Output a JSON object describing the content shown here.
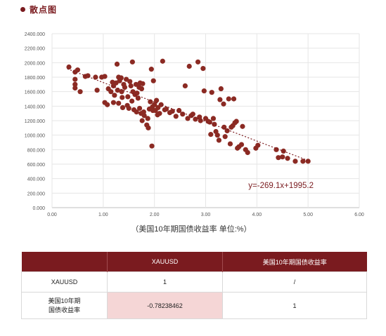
{
  "header": {
    "title": "散点图"
  },
  "chart_data": {
    "type": "scatter",
    "title": "",
    "xlabel": "（美国10年期国债收益率 单位:%）",
    "ylabel": "",
    "xlim": [
      0,
      6
    ],
    "ylim": [
      0,
      2400
    ],
    "x_ticks": [
      "0.00",
      "1.00",
      "2.00",
      "3.00",
      "4.00",
      "5.00",
      "6.00"
    ],
    "y_ticks": [
      "0.000",
      "200.000",
      "400.000",
      "600.000",
      "800.000",
      "1000.000",
      "1200.000",
      "1400.000",
      "1600.000",
      "1800.000",
      "2000.000",
      "2200.000",
      "2400.000"
    ],
    "grid": true,
    "colors": {
      "points": "#8b2a23",
      "trendline": "#7a1b1f",
      "grid": "#e6e6e6"
    },
    "trendline": {
      "slope": -269.1,
      "intercept": 1995.2,
      "x_range": [
        0.3,
        5.0
      ],
      "label": "y=-269.1x+1995.2"
    },
    "series": [
      {
        "points": [
          [
            0.33,
            1940
          ],
          [
            0.45,
            1870
          ],
          [
            0.45,
            1770
          ],
          [
            0.45,
            1700
          ],
          [
            0.45,
            1650
          ],
          [
            0.5,
            1900
          ],
          [
            0.55,
            1600
          ],
          [
            0.65,
            1810
          ],
          [
            0.7,
            1820
          ],
          [
            0.85,
            1800
          ],
          [
            0.88,
            1620
          ],
          [
            0.97,
            1800
          ],
          [
            1.03,
            1810
          ],
          [
            1.03,
            1450
          ],
          [
            1.08,
            1420
          ],
          [
            1.1,
            1640
          ],
          [
            1.15,
            1600
          ],
          [
            1.18,
            1730
          ],
          [
            1.2,
            1680
          ],
          [
            1.2,
            1450
          ],
          [
            1.22,
            1550
          ],
          [
            1.25,
            1720
          ],
          [
            1.27,
            1980
          ],
          [
            1.28,
            1620
          ],
          [
            1.3,
            1800
          ],
          [
            1.3,
            1440
          ],
          [
            1.32,
            1750
          ],
          [
            1.35,
            1790
          ],
          [
            1.36,
            1600
          ],
          [
            1.37,
            1520
          ],
          [
            1.38,
            1380
          ],
          [
            1.4,
            1700
          ],
          [
            1.42,
            1660
          ],
          [
            1.45,
            1770
          ],
          [
            1.47,
            1410
          ],
          [
            1.48,
            1530
          ],
          [
            1.5,
            1370
          ],
          [
            1.52,
            1740
          ],
          [
            1.54,
            1680
          ],
          [
            1.56,
            1470
          ],
          [
            1.57,
            2010
          ],
          [
            1.58,
            1600
          ],
          [
            1.6,
            1350
          ],
          [
            1.62,
            1560
          ],
          [
            1.64,
            1700
          ],
          [
            1.65,
            1320
          ],
          [
            1.66,
            1580
          ],
          [
            1.68,
            1510
          ],
          [
            1.7,
            1660
          ],
          [
            1.71,
            1370
          ],
          [
            1.72,
            1720
          ],
          [
            1.74,
            1300
          ],
          [
            1.75,
            1640
          ],
          [
            1.76,
            1200
          ],
          [
            1.77,
            1710
          ],
          [
            1.79,
            1320
          ],
          [
            1.8,
            1270
          ],
          [
            1.85,
            1140
          ],
          [
            1.87,
            1230
          ],
          [
            1.88,
            1100
          ],
          [
            1.9,
            1360
          ],
          [
            1.92,
            1460
          ],
          [
            1.94,
            1910
          ],
          [
            1.95,
            850
          ],
          [
            1.96,
            1390
          ],
          [
            1.97,
            1340
          ],
          [
            1.98,
            1750
          ],
          [
            2.0,
            1420
          ],
          [
            2.02,
            1340
          ],
          [
            2.04,
            1480
          ],
          [
            2.06,
            1280
          ],
          [
            2.07,
            1380
          ],
          [
            2.1,
            1300
          ],
          [
            2.13,
            1420
          ],
          [
            2.16,
            2020
          ],
          [
            2.2,
            1350
          ],
          [
            2.23,
            1360
          ],
          [
            2.3,
            1310
          ],
          [
            2.35,
            1330
          ],
          [
            2.42,
            1260
          ],
          [
            2.48,
            1340
          ],
          [
            2.55,
            1290
          ],
          [
            2.6,
            1680
          ],
          [
            2.65,
            1230
          ],
          [
            2.68,
            1950
          ],
          [
            2.72,
            1270
          ],
          [
            2.75,
            1290
          ],
          [
            2.8,
            1220
          ],
          [
            2.85,
            2010
          ],
          [
            2.88,
            1250
          ],
          [
            2.9,
            1200
          ],
          [
            2.95,
            1920
          ],
          [
            2.97,
            1610
          ],
          [
            3.0,
            1230
          ],
          [
            3.05,
            1190
          ],
          [
            3.08,
            1180
          ],
          [
            3.1,
            1010
          ],
          [
            3.12,
            1590
          ],
          [
            3.15,
            1230
          ],
          [
            3.17,
            1150
          ],
          [
            3.2,
            1050
          ],
          [
            3.23,
            1000
          ],
          [
            3.26,
            930
          ],
          [
            3.28,
            1490
          ],
          [
            3.3,
            1640
          ],
          [
            3.35,
            1430
          ],
          [
            3.36,
            1110
          ],
          [
            3.38,
            980
          ],
          [
            3.42,
            1060
          ],
          [
            3.45,
            1500
          ],
          [
            3.48,
            880
          ],
          [
            3.5,
            1110
          ],
          [
            3.53,
            1130
          ],
          [
            3.55,
            1500
          ],
          [
            3.57,
            1170
          ],
          [
            3.6,
            1190
          ],
          [
            3.62,
            820
          ],
          [
            3.65,
            840
          ],
          [
            3.7,
            870
          ],
          [
            3.72,
            1120
          ],
          [
            3.78,
            800
          ],
          [
            3.82,
            760
          ],
          [
            3.98,
            820
          ],
          [
            4.02,
            860
          ],
          [
            4.38,
            800
          ],
          [
            4.42,
            690
          ],
          [
            4.5,
            700
          ],
          [
            4.52,
            780
          ],
          [
            4.6,
            680
          ],
          [
            4.75,
            640
          ],
          [
            4.9,
            640
          ],
          [
            5.0,
            640
          ]
        ]
      }
    ]
  },
  "table": {
    "headers": [
      "",
      "XAUUSD",
      "美国10年期国债收益率"
    ],
    "rows": [
      [
        "XAUUSD",
        "1",
        "/"
      ],
      [
        "美国10年期\n国债收益率",
        "-0.78238462",
        "1"
      ]
    ]
  }
}
